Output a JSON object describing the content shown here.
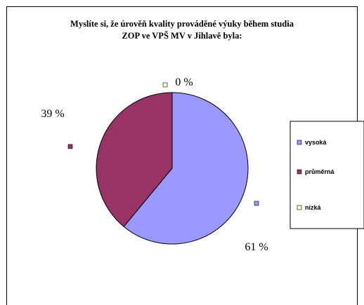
{
  "chart_data": {
    "type": "pie",
    "title": "Myslíte si, že úrověň kvality prováděné výuky během studia\nZOP ve VPŠ MV v Jihlavě byla:",
    "categories": [
      "vysoká",
      "průměrná",
      "nízká"
    ],
    "values": [
      61,
      39,
      0
    ],
    "data_labels": [
      "61 %",
      "39 %",
      "0 %"
    ],
    "colors": [
      "#9999ff",
      "#993366",
      "#ffffcc"
    ],
    "legend_position": "right"
  }
}
